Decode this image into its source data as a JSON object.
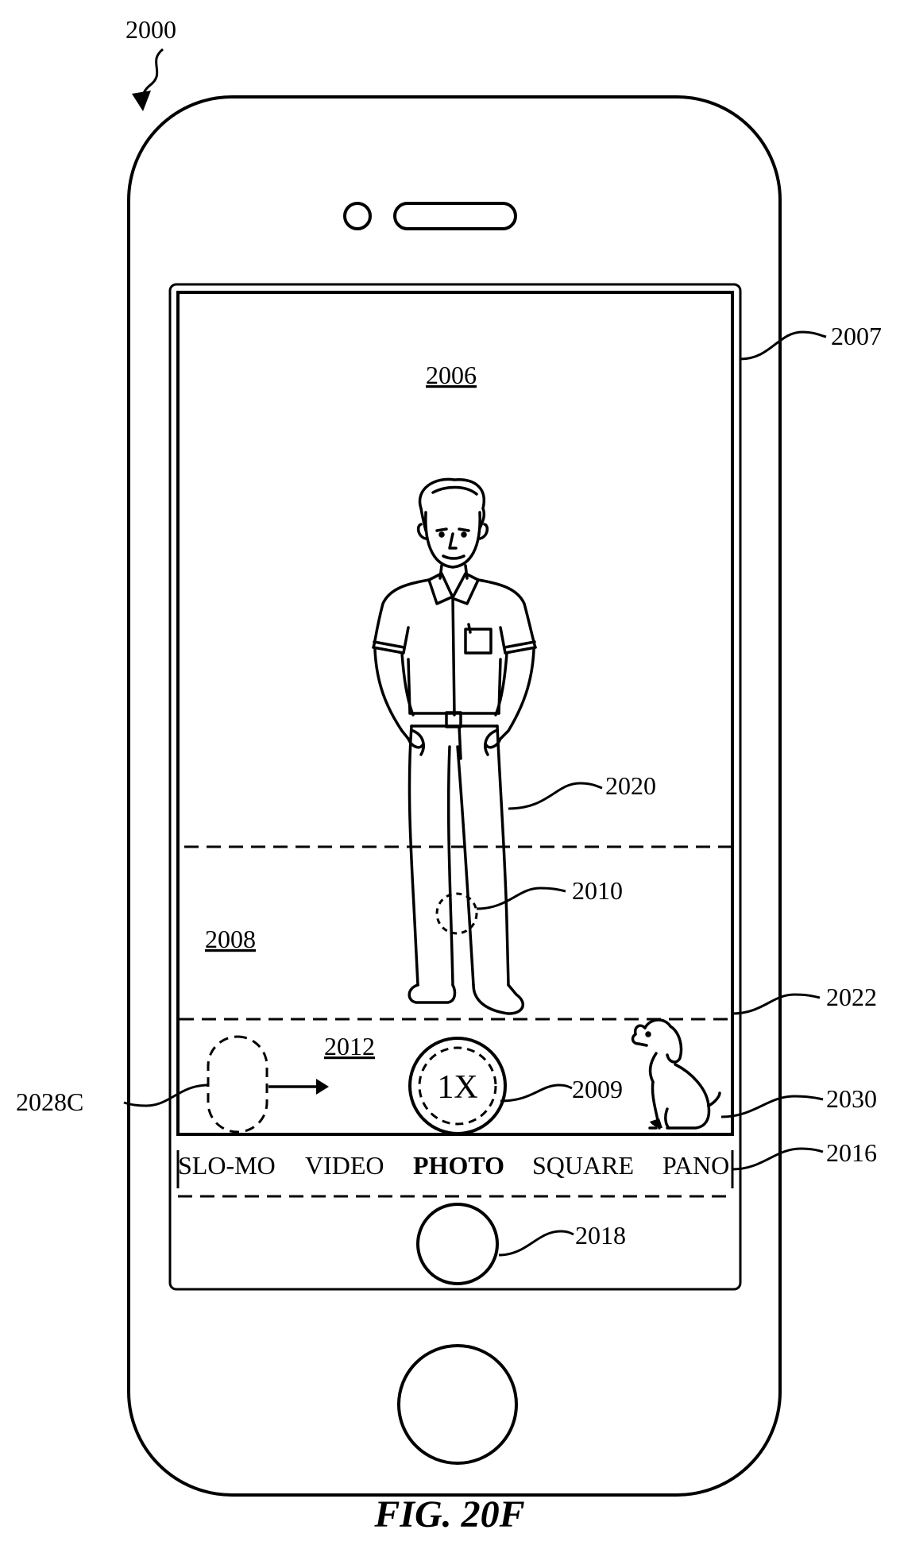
{
  "figure": {
    "caption": "FIG. 20F"
  },
  "device": {
    "ref": "2000",
    "display_ref": "2007",
    "home_button": "home-button"
  },
  "viewfinder": {
    "region_top": {
      "ref": "2006"
    },
    "region_middle": {
      "ref": "2008"
    },
    "region_bottom": {
      "ref": "2012"
    },
    "boundary_ref": "2022",
    "subject_ref": "2020",
    "focus_indicator_ref": "2010",
    "pet_ref": "2030",
    "zoom_control": {
      "ref": "2009",
      "label": "1X"
    },
    "affordance_ref": "2028C"
  },
  "camera_modes": {
    "ref": "2016",
    "items": [
      {
        "label": "SLO-MO",
        "selected": false
      },
      {
        "label": "VIDEO",
        "selected": false
      },
      {
        "label": "PHOTO",
        "selected": true
      },
      {
        "label": "SQUARE",
        "selected": false
      },
      {
        "label": "PANO",
        "selected": false
      }
    ]
  },
  "shutter": {
    "ref": "2018"
  }
}
